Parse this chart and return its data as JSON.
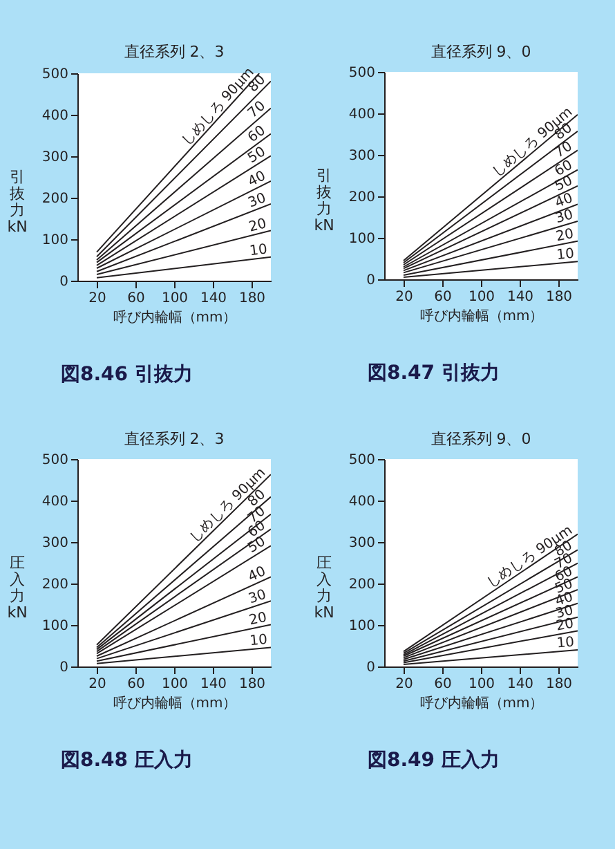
{
  "chart_data": [
    {
      "type": "line",
      "title": "直径系列 2、3",
      "xlabel": "呼び内輪幅（mm）",
      "ylabel": "引抜力 kN",
      "xlim": [
        0,
        200
      ],
      "ylim": [
        0,
        500
      ],
      "xticks": [
        20,
        60,
        100,
        140,
        180
      ],
      "yticks": [
        0,
        100,
        200,
        300,
        400,
        500
      ],
      "annotations": [
        "図8.46 引抜力"
      ],
      "series": [
        {
          "name": "しめしろ 90μm",
          "color": "#231f20",
          "x": [
            20,
            188
          ],
          "values": [
            69,
            500
          ]
        },
        {
          "name": "80",
          "color": "#231f20",
          "x": [
            20,
            200
          ],
          "values": [
            58,
            481
          ]
        },
        {
          "name": "70",
          "color": "#231f20",
          "x": [
            20,
            200
          ],
          "values": [
            50,
            416
          ]
        },
        {
          "name": "60",
          "color": "#231f20",
          "x": [
            20,
            200
          ],
          "values": [
            44,
            354
          ]
        },
        {
          "name": "50",
          "color": "#231f20",
          "x": [
            20,
            200
          ],
          "values": [
            37,
            301
          ]
        },
        {
          "name": "40",
          "color": "#231f20",
          "x": [
            20,
            200
          ],
          "values": [
            30,
            240
          ]
        },
        {
          "name": "30",
          "color": "#231f20",
          "x": [
            20,
            200
          ],
          "values": [
            22,
            185
          ]
        },
        {
          "name": "20",
          "color": "#231f20",
          "x": [
            20,
            200
          ],
          "values": [
            15,
            121
          ]
        },
        {
          "name": "10",
          "color": "#231f20",
          "x": [
            20,
            200
          ],
          "values": [
            7,
            57
          ]
        }
      ]
    },
    {
      "type": "line",
      "title": "直径系列 9、0",
      "xlabel": "呼び内輪幅（mm）",
      "ylabel": "引抜力 kN",
      "xlim": [
        0,
        200
      ],
      "ylim": [
        0,
        500
      ],
      "xticks": [
        20,
        60,
        100,
        140,
        180
      ],
      "yticks": [
        0,
        100,
        200,
        300,
        400,
        500
      ],
      "annotations": [
        "図8.47 引抜力"
      ],
      "series": [
        {
          "name": "しめしろ 90μm",
          "color": "#231f20",
          "x": [
            20,
            200
          ],
          "values": [
            45,
            397
          ]
        },
        {
          "name": "80",
          "color": "#231f20",
          "x": [
            20,
            200
          ],
          "values": [
            40,
            357
          ]
        },
        {
          "name": "70",
          "color": "#231f20",
          "x": [
            20,
            200
          ],
          "values": [
            35,
            311
          ]
        },
        {
          "name": "60",
          "color": "#231f20",
          "x": [
            20,
            200
          ],
          "values": [
            30,
            264
          ]
        },
        {
          "name": "50",
          "color": "#231f20",
          "x": [
            20,
            200
          ],
          "values": [
            26,
            225
          ]
        },
        {
          "name": "40",
          "color": "#231f20",
          "x": [
            20,
            200
          ],
          "values": [
            21,
            181
          ]
        },
        {
          "name": "30",
          "color": "#231f20",
          "x": [
            20,
            200
          ],
          "values": [
            16,
            140
          ]
        },
        {
          "name": "20",
          "color": "#231f20",
          "x": [
            20,
            200
          ],
          "values": [
            10,
            92
          ]
        },
        {
          "name": "10",
          "color": "#231f20",
          "x": [
            20,
            200
          ],
          "values": [
            5,
            43
          ]
        }
      ]
    },
    {
      "type": "line",
      "title": "直径系列 2、3",
      "xlabel": "呼び内輪幅（mm）",
      "ylabel": "圧入力 kN",
      "xlim": [
        0,
        200
      ],
      "ylim": [
        0,
        500
      ],
      "xticks": [
        20,
        60,
        100,
        140,
        180
      ],
      "yticks": [
        0,
        100,
        200,
        300,
        400,
        500
      ],
      "annotations": [
        "図8.48 圧入力"
      ],
      "series": [
        {
          "name": "しめしろ 90μm",
          "color": "#231f20",
          "x": [
            20,
            200
          ],
          "values": [
            52,
            463
          ]
        },
        {
          "name": "80",
          "color": "#231f20",
          "x": [
            20,
            200
          ],
          "values": [
            46,
            409
          ]
        },
        {
          "name": "70",
          "color": "#231f20",
          "x": [
            20,
            200
          ],
          "values": [
            41,
            367
          ]
        },
        {
          "name": "60",
          "color": "#231f20",
          "x": [
            20,
            200
          ],
          "values": [
            36,
            331
          ]
        },
        {
          "name": "50",
          "color": "#231f20",
          "x": [
            20,
            200
          ],
          "values": [
            31,
            291
          ]
        },
        {
          "name": "40",
          "color": "#231f20",
          "x": [
            20,
            200
          ],
          "values": [
            25,
            216
          ]
        },
        {
          "name": "30",
          "color": "#231f20",
          "x": [
            20,
            200
          ],
          "values": [
            19,
            158
          ]
        },
        {
          "name": "20",
          "color": "#231f20",
          "x": [
            20,
            200
          ],
          "values": [
            13,
            101
          ]
        },
        {
          "name": "10",
          "color": "#231f20",
          "x": [
            20,
            200
          ],
          "values": [
            7,
            46
          ]
        }
      ]
    },
    {
      "type": "line",
      "title": "直径系列 9、0",
      "xlabel": "呼び内輪幅（mm）",
      "ylabel": "圧入力 kN",
      "xlim": [
        0,
        200
      ],
      "ylim": [
        0,
        500
      ],
      "xticks": [
        20,
        60,
        100,
        140,
        180
      ],
      "yticks": [
        0,
        100,
        200,
        300,
        400,
        500
      ],
      "annotations": [
        "図8.49 圧入力"
      ],
      "series": [
        {
          "name": "しめしろ 90μm",
          "color": "#231f20",
          "x": [
            20,
            200
          ],
          "values": [
            36,
            319
          ]
        },
        {
          "name": "80",
          "color": "#231f20",
          "x": [
            20,
            200
          ],
          "values": [
            32,
            281
          ]
        },
        {
          "name": "70",
          "color": "#231f20",
          "x": [
            20,
            200
          ],
          "values": [
            28,
            249
          ]
        },
        {
          "name": "60",
          "color": "#231f20",
          "x": [
            20,
            200
          ],
          "values": [
            25,
            216
          ]
        },
        {
          "name": "50",
          "color": "#231f20",
          "x": [
            20,
            200
          ],
          "values": [
            21,
            185
          ]
        },
        {
          "name": "40",
          "color": "#231f20",
          "x": [
            20,
            200
          ],
          "values": [
            17,
            152
          ]
        },
        {
          "name": "30",
          "color": "#231f20",
          "x": [
            20,
            200
          ],
          "values": [
            13,
            119
          ]
        },
        {
          "name": "20",
          "color": "#231f20",
          "x": [
            20,
            200
          ],
          "values": [
            9,
            86
          ]
        },
        {
          "name": "10",
          "color": "#231f20",
          "x": [
            20,
            200
          ],
          "values": [
            5,
            40
          ]
        }
      ]
    }
  ]
}
